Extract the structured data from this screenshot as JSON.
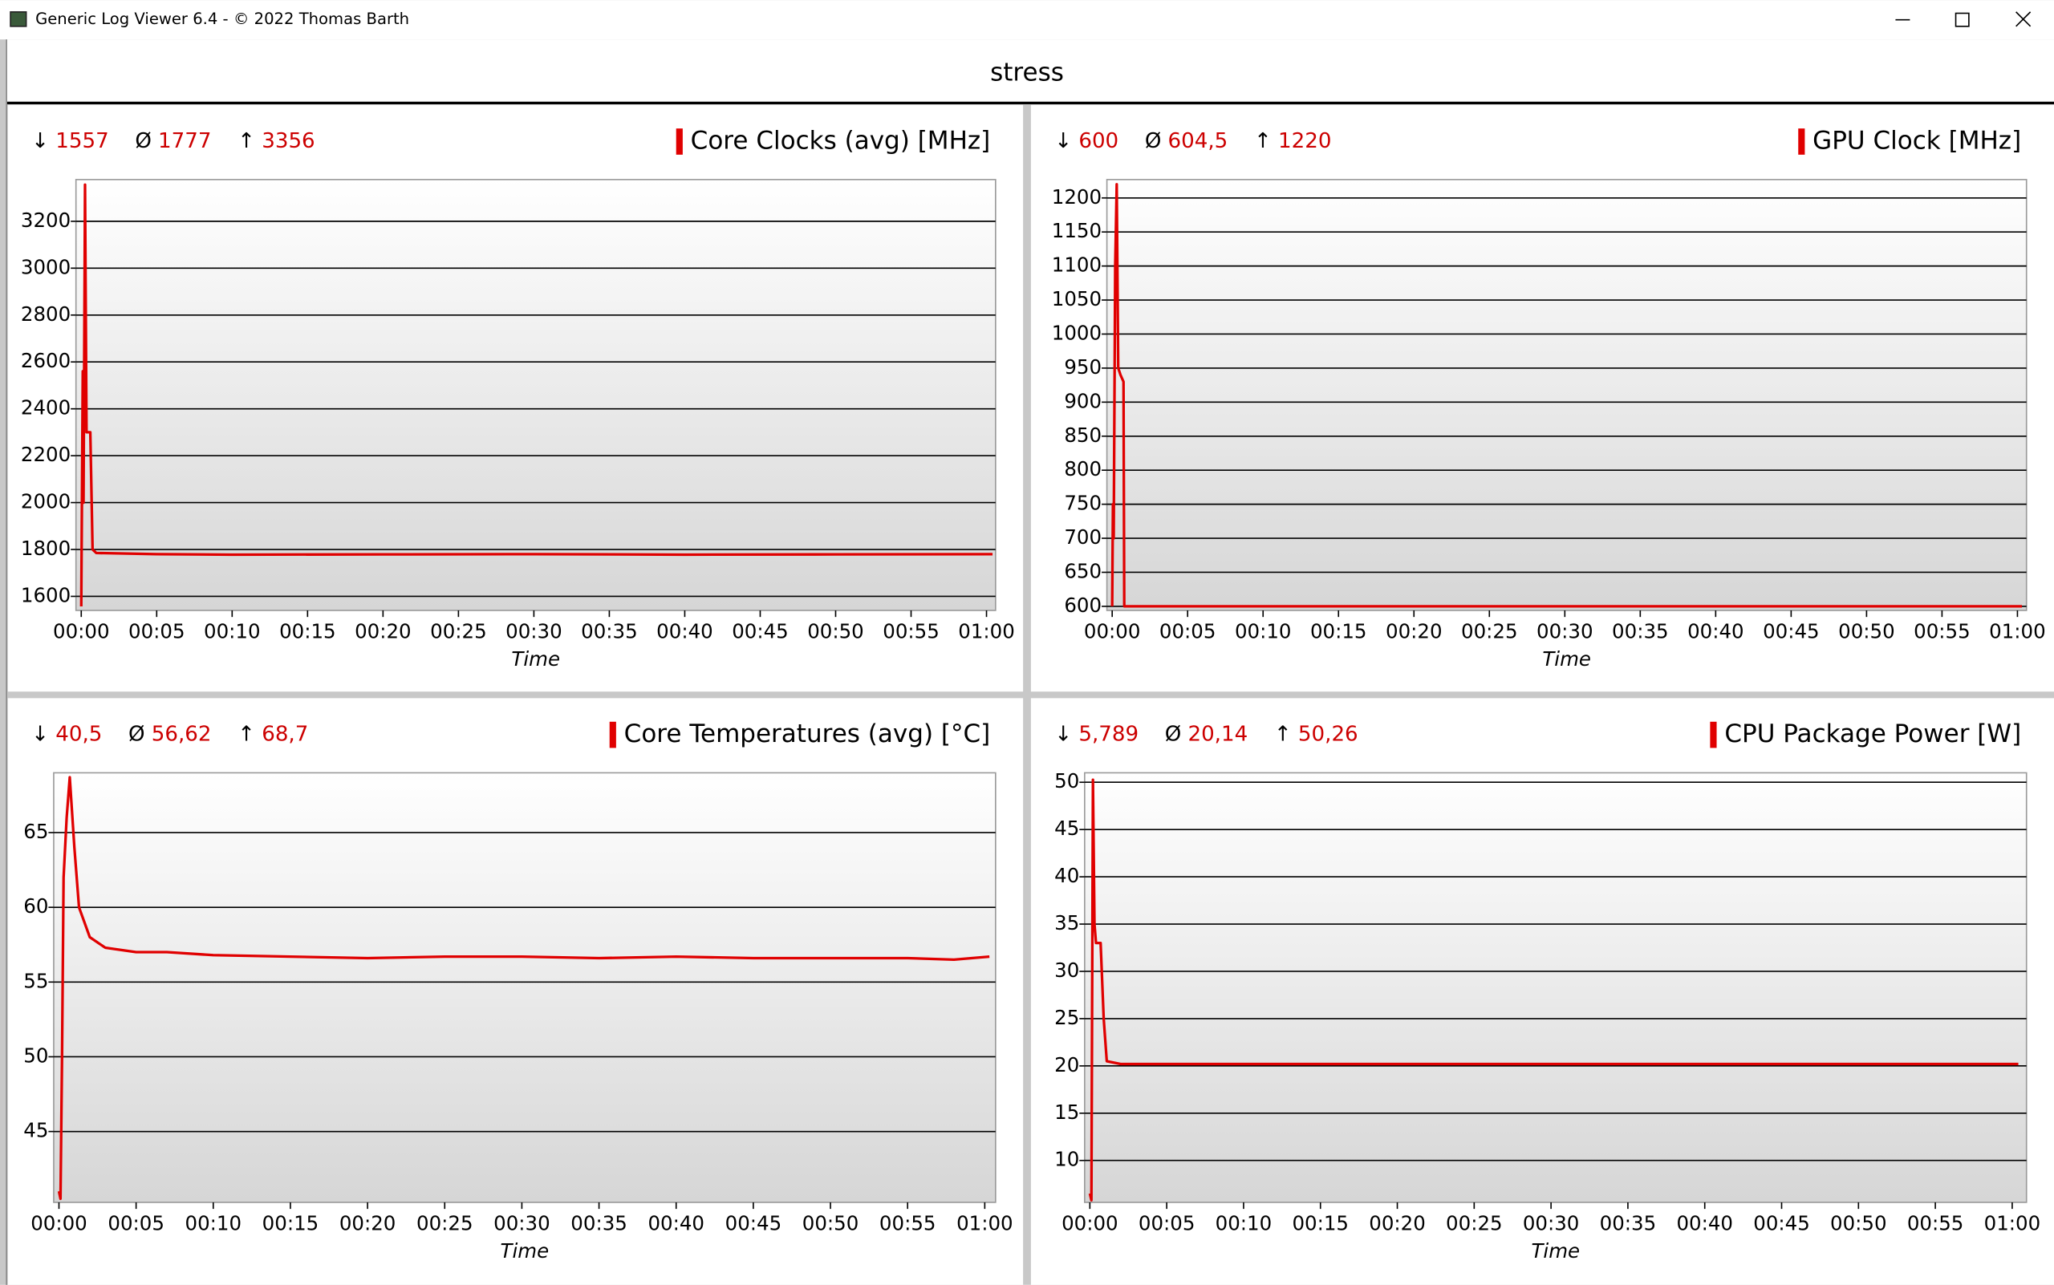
{
  "window": {
    "title": "Generic Log Viewer 6.4 - © 2022 Thomas Barth"
  },
  "header": {
    "title": "stress"
  },
  "chart_data": [
    {
      "type": "line",
      "x_label": "Time",
      "stats": [
        {
          "symbol": "↓",
          "value": 1557
        },
        {
          "symbol": "Ø",
          "value": 1777
        },
        {
          "symbol": "↑",
          "value": 3356
        }
      ],
      "x": [
        0,
        0.1,
        0.15,
        0.25,
        0.35,
        0.6,
        0.75,
        1,
        5,
        10,
        20,
        30,
        40,
        50,
        60.4
      ],
      "series": [
        {
          "name": "Core Clocks (avg) [MHz]",
          "color": "#e00000",
          "values": [
            1557,
            2560,
            2000,
            3356,
            2300,
            2300,
            1800,
            1785,
            1780,
            1778,
            1779,
            1780,
            1778,
            1779,
            1780
          ]
        }
      ],
      "xlim": [
        -0.35,
        60.6
      ],
      "ylim": [
        1540,
        3378
      ],
      "xticks": [
        {
          "value": 0,
          "label": "00:00"
        },
        {
          "value": 5,
          "label": "00:05"
        },
        {
          "value": 10,
          "label": "00:10"
        },
        {
          "value": 15,
          "label": "00:15"
        },
        {
          "value": 20,
          "label": "00:20"
        },
        {
          "value": 25,
          "label": "00:25"
        },
        {
          "value": 30,
          "label": "00:30"
        },
        {
          "value": 35,
          "label": "00:35"
        },
        {
          "value": 40,
          "label": "00:40"
        },
        {
          "value": 45,
          "label": "00:45"
        },
        {
          "value": 50,
          "label": "00:50"
        },
        {
          "value": 55,
          "label": "00:55"
        },
        {
          "value": 60,
          "label": "01:00"
        }
      ],
      "yticks": [
        1600,
        1800,
        2000,
        2200,
        2400,
        2600,
        2800,
        3000,
        3200
      ],
      "grid": true
    },
    {
      "type": "line",
      "x_label": "Time",
      "stats": [
        {
          "symbol": "↓",
          "value": 600
        },
        {
          "symbol": "Ø",
          "value": {
            "value": 604.5,
            "label": "604,5"
          }
        },
        {
          "symbol": "↑",
          "value": 1220
        }
      ],
      "x": [
        0,
        0.05,
        0.1,
        0.2,
        0.3,
        0.4,
        0.55,
        0.75,
        0.8,
        60.3
      ],
      "series": [
        {
          "name": "GPU Clock [MHz]",
          "color": "#e00000",
          "values": [
            600,
            750,
            700,
            1100,
            1220,
            950,
            940,
            930,
            600,
            600
          ]
        }
      ],
      "xlim": [
        -0.35,
        60.6
      ],
      "ylim": [
        594,
        1227
      ],
      "xticks": [
        {
          "value": 0,
          "label": "00:00"
        },
        {
          "value": 5,
          "label": "00:05"
        },
        {
          "value": 10,
          "label": "00:10"
        },
        {
          "value": 15,
          "label": "00:15"
        },
        {
          "value": 20,
          "label": "00:20"
        },
        {
          "value": 25,
          "label": "00:25"
        },
        {
          "value": 30,
          "label": "00:30"
        },
        {
          "value": 35,
          "label": "00:35"
        },
        {
          "value": 40,
          "label": "00:40"
        },
        {
          "value": 45,
          "label": "00:45"
        },
        {
          "value": 50,
          "label": "00:50"
        },
        {
          "value": 55,
          "label": "00:55"
        },
        {
          "value": 60,
          "label": "01:00"
        }
      ],
      "yticks": [
        600,
        650,
        700,
        750,
        800,
        850,
        900,
        950,
        1000,
        1050,
        1100,
        1150,
        1200
      ],
      "grid": true
    },
    {
      "type": "line",
      "x_label": "Time",
      "stats": [
        {
          "symbol": "↓",
          "value": {
            "value": 40.5,
            "label": "40,5"
          }
        },
        {
          "symbol": "Ø",
          "value": {
            "value": 56.62,
            "label": "56,62"
          }
        },
        {
          "symbol": "↑",
          "value": {
            "value": 68.7,
            "label": "68,7"
          }
        }
      ],
      "x": [
        0,
        0.1,
        0.2,
        0.3,
        0.5,
        0.7,
        1,
        1.3,
        2,
        3,
        5,
        7,
        10,
        15,
        20,
        25,
        30,
        35,
        40,
        45,
        50,
        55,
        58,
        60.3
      ],
      "series": [
        {
          "name": "Core Temperatures (avg) [°C]",
          "color": "#e00000",
          "values": [
            41,
            40.5,
            50,
            62,
            66,
            68.7,
            64,
            60,
            58,
            57.3,
            57,
            57,
            56.8,
            56.7,
            56.6,
            56.7,
            56.7,
            56.6,
            56.7,
            56.6,
            56.6,
            56.6,
            56.5,
            56.7
          ]
        }
      ],
      "xlim": [
        -0.34,
        60.7
      ],
      "ylim": [
        40.26,
        69
      ],
      "xticks": [
        {
          "value": 0,
          "label": "00:00"
        },
        {
          "value": 5,
          "label": "00:05"
        },
        {
          "value": 10,
          "label": "00:10"
        },
        {
          "value": 15,
          "label": "00:15"
        },
        {
          "value": 20,
          "label": "00:20"
        },
        {
          "value": 25,
          "label": "00:25"
        },
        {
          "value": 30,
          "label": "00:30"
        },
        {
          "value": 35,
          "label": "00:35"
        },
        {
          "value": 40,
          "label": "00:40"
        },
        {
          "value": 45,
          "label": "00:45"
        },
        {
          "value": 50,
          "label": "00:50"
        },
        {
          "value": 55,
          "label": "00:55"
        },
        {
          "value": 60,
          "label": "01:00"
        }
      ],
      "yticks": [
        45,
        50,
        55,
        60,
        65
      ],
      "grid": true
    },
    {
      "type": "line",
      "x_label": "Time",
      "stats": [
        {
          "symbol": "↓",
          "value": {
            "value": 5.789,
            "label": "5,789"
          }
        },
        {
          "symbol": "Ø",
          "value": {
            "value": 20.14,
            "label": "20,14"
          }
        },
        {
          "symbol": "↑",
          "value": {
            "value": 50.26,
            "label": "50,26"
          }
        }
      ],
      "x": [
        0,
        0.1,
        0.2,
        0.3,
        0.4,
        0.7,
        0.9,
        1.1,
        2,
        60.4
      ],
      "series": [
        {
          "name": "CPU Package Power [W]",
          "color": "#e00000",
          "values": [
            6.5,
            5.789,
            50.26,
            35,
            33,
            33,
            25,
            20.5,
            20.2,
            20.2
          ]
        }
      ],
      "xlim": [
        -0.34,
        60.93
      ],
      "ylim": [
        5.57,
        51
      ],
      "xticks": [
        {
          "value": 0,
          "label": "00:00"
        },
        {
          "value": 5,
          "label": "00:05"
        },
        {
          "value": 10,
          "label": "00:10"
        },
        {
          "value": 15,
          "label": "00:15"
        },
        {
          "value": 20,
          "label": "00:20"
        },
        {
          "value": 25,
          "label": "00:25"
        },
        {
          "value": 30,
          "label": "00:30"
        },
        {
          "value": 35,
          "label": "00:35"
        },
        {
          "value": 40,
          "label": "00:40"
        },
        {
          "value": 45,
          "label": "00:45"
        },
        {
          "value": 50,
          "label": "00:50"
        },
        {
          "value": 55,
          "label": "00:55"
        },
        {
          "value": 60,
          "label": "01:00"
        }
      ],
      "yticks": [
        10,
        15,
        20,
        25,
        30,
        35,
        40,
        45,
        50
      ],
      "grid": true
    }
  ]
}
